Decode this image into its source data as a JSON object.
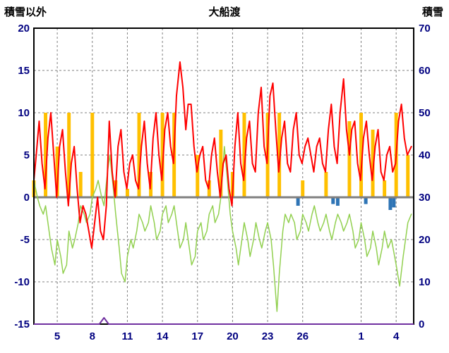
{
  "chart_data": {
    "type": "line",
    "title": "大船渡",
    "left_axis": {
      "label": "積雪以外",
      "min": -15,
      "max": 20,
      "ticks": [
        20,
        15,
        10,
        5,
        0,
        -5,
        -10,
        -15
      ]
    },
    "right_axis": {
      "label": "積雪",
      "min": 0,
      "max": 70,
      "ticks": [
        70,
        60,
        50,
        40,
        30,
        20,
        10,
        0
      ]
    },
    "x_axis": {
      "min": 3,
      "max": 35.5,
      "tick_days": [
        5,
        8,
        11,
        14,
        17,
        20,
        23,
        26,
        31,
        34
      ],
      "tick_labels": [
        "5",
        "8",
        "11",
        "14",
        "17",
        "20",
        "23",
        "26",
        "1",
        "4"
      ]
    },
    "colors": {
      "grid": "#808080",
      "zero_line": "#808080",
      "frame": "#000000",
      "tick_text": "#000080",
      "red_line": "#FF0000",
      "green_line": "#92D050",
      "orange_bars": "#FFC000",
      "blue_bars": "#2E74B5",
      "purple_line": "#7030A0"
    },
    "series": [
      {
        "name": "orange-bars",
        "type": "bar",
        "axis": "left",
        "color": "#FFC000",
        "bar_width_days": 0.3,
        "points": [
          [
            3,
            2
          ],
          [
            4,
            10
          ],
          [
            5,
            6
          ],
          [
            6,
            10
          ],
          [
            7,
            3
          ],
          [
            8,
            10
          ],
          [
            10,
            2
          ],
          [
            11,
            1
          ],
          [
            12,
            10
          ],
          [
            13,
            3
          ],
          [
            14,
            10
          ],
          [
            15,
            10
          ],
          [
            17,
            5
          ],
          [
            18,
            2
          ],
          [
            19,
            8
          ],
          [
            20,
            3
          ],
          [
            21,
            10
          ],
          [
            23,
            10
          ],
          [
            24,
            10
          ],
          [
            26,
            2
          ],
          [
            28,
            3
          ],
          [
            30,
            9
          ],
          [
            31,
            10
          ],
          [
            32,
            8
          ],
          [
            33,
            2
          ],
          [
            34,
            10
          ],
          [
            35,
            5
          ]
        ]
      },
      {
        "name": "blue-bars",
        "type": "bar",
        "axis": "left",
        "color": "#2E74B5",
        "bar_width_days": 0.3,
        "points": [
          [
            25.6,
            -1
          ],
          [
            28.6,
            -0.8
          ],
          [
            29,
            -1
          ],
          [
            31.4,
            -0.8
          ],
          [
            33.5,
            -1.5
          ],
          [
            33.8,
            -1.2
          ]
        ]
      },
      {
        "name": "green-line",
        "type": "line",
        "axis": "left",
        "color": "#92D050",
        "width": 1.5,
        "points": [
          [
            3,
            2
          ],
          [
            3.3,
            0
          ],
          [
            3.5,
            -1
          ],
          [
            3.8,
            -2
          ],
          [
            4,
            -1
          ],
          [
            4.3,
            -4
          ],
          [
            4.5,
            -6
          ],
          [
            4.8,
            -8
          ],
          [
            5,
            -5
          ],
          [
            5.3,
            -7
          ],
          [
            5.5,
            -9
          ],
          [
            5.8,
            -8
          ],
          [
            6,
            -4
          ],
          [
            6.3,
            -6
          ],
          [
            6.5,
            -5
          ],
          [
            6.8,
            -3
          ],
          [
            7,
            -1
          ],
          [
            7.3,
            -2
          ],
          [
            7.5,
            -3
          ],
          [
            7.8,
            -2
          ],
          [
            8,
            0
          ],
          [
            8.3,
            1
          ],
          [
            8.5,
            2
          ],
          [
            8.8,
            0
          ],
          [
            9,
            -1
          ],
          [
            9.3,
            3
          ],
          [
            9.5,
            5
          ],
          [
            9.8,
            1
          ],
          [
            10,
            -2
          ],
          [
            10.3,
            -6
          ],
          [
            10.5,
            -9
          ],
          [
            10.8,
            -10
          ],
          [
            11,
            -7
          ],
          [
            11.3,
            -5
          ],
          [
            11.5,
            -6
          ],
          [
            11.8,
            -4
          ],
          [
            12,
            -2
          ],
          [
            12.3,
            -3
          ],
          [
            12.5,
            -4
          ],
          [
            12.8,
            -3
          ],
          [
            13,
            -1
          ],
          [
            13.3,
            -3
          ],
          [
            13.5,
            -5
          ],
          [
            13.8,
            -4
          ],
          [
            14,
            -2
          ],
          [
            14.3,
            -1
          ],
          [
            14.5,
            -3
          ],
          [
            14.8,
            -2
          ],
          [
            15,
            -1
          ],
          [
            15.3,
            -4
          ],
          [
            15.5,
            -6
          ],
          [
            15.8,
            -5
          ],
          [
            16,
            -3
          ],
          [
            16.3,
            -6
          ],
          [
            16.5,
            -8
          ],
          [
            16.8,
            -7
          ],
          [
            17,
            -4
          ],
          [
            17.3,
            -3
          ],
          [
            17.5,
            -5
          ],
          [
            17.8,
            -4
          ],
          [
            18,
            -2
          ],
          [
            18.3,
            -1
          ],
          [
            18.5,
            -3
          ],
          [
            18.8,
            -2
          ],
          [
            19,
            0
          ],
          [
            19.3,
            6
          ],
          [
            19.5,
            3
          ],
          [
            19.8,
            -2
          ],
          [
            20,
            -4
          ],
          [
            20.3,
            -6
          ],
          [
            20.5,
            -8
          ],
          [
            20.8,
            -5
          ],
          [
            21,
            -3
          ],
          [
            21.3,
            -5
          ],
          [
            21.5,
            -7
          ],
          [
            21.8,
            -5
          ],
          [
            22,
            -3
          ],
          [
            22.3,
            -5
          ],
          [
            22.5,
            -6
          ],
          [
            22.8,
            -4
          ],
          [
            23,
            -3
          ],
          [
            23.3,
            -5
          ],
          [
            23.5,
            -8
          ],
          [
            23.8,
            -13.5
          ],
          [
            24,
            -9
          ],
          [
            24.3,
            -4
          ],
          [
            24.5,
            -2
          ],
          [
            24.8,
            -3
          ],
          [
            25,
            -2
          ],
          [
            25.3,
            -3
          ],
          [
            25.5,
            -5
          ],
          [
            25.8,
            -4
          ],
          [
            26,
            -2
          ],
          [
            26.3,
            -3
          ],
          [
            26.5,
            -4
          ],
          [
            26.8,
            -2
          ],
          [
            27,
            -1
          ],
          [
            27.3,
            -3
          ],
          [
            27.5,
            -4
          ],
          [
            27.8,
            -3
          ],
          [
            28,
            -2
          ],
          [
            28.3,
            -4
          ],
          [
            28.5,
            -5
          ],
          [
            28.8,
            -3
          ],
          [
            29,
            -2
          ],
          [
            29.3,
            -3
          ],
          [
            29.5,
            -4
          ],
          [
            29.8,
            -3
          ],
          [
            30,
            -2
          ],
          [
            30.3,
            -4
          ],
          [
            30.5,
            -6
          ],
          [
            30.8,
            -5
          ],
          [
            31,
            -3
          ],
          [
            31.3,
            -5
          ],
          [
            31.5,
            -7
          ],
          [
            31.8,
            -6
          ],
          [
            32,
            -4
          ],
          [
            32.3,
            -6
          ],
          [
            32.5,
            -8
          ],
          [
            32.8,
            -6
          ],
          [
            33,
            -4
          ],
          [
            33.3,
            -6
          ],
          [
            33.6,
            -5
          ],
          [
            34,
            -8
          ],
          [
            34.3,
            -10.5
          ],
          [
            34.6,
            -7
          ],
          [
            35,
            -3
          ],
          [
            35.3,
            -2
          ]
        ]
      },
      {
        "name": "red-line",
        "type": "line",
        "axis": "left",
        "color": "#FF0000",
        "width": 2,
        "points": [
          [
            3,
            2
          ],
          [
            3.2,
            5
          ],
          [
            3.45,
            9
          ],
          [
            3.7,
            4
          ],
          [
            3.95,
            1
          ],
          [
            4.2,
            7
          ],
          [
            4.45,
            10
          ],
          [
            4.7,
            5
          ],
          [
            4.95,
            0
          ],
          [
            5.2,
            6
          ],
          [
            5.45,
            8
          ],
          [
            5.7,
            3
          ],
          [
            5.95,
            -1
          ],
          [
            6.2,
            4
          ],
          [
            6.45,
            6
          ],
          [
            6.7,
            1
          ],
          [
            6.95,
            -3
          ],
          [
            7.2,
            -1
          ],
          [
            7.45,
            -2
          ],
          [
            7.7,
            -4
          ],
          [
            7.95,
            -6
          ],
          [
            8.2,
            -3
          ],
          [
            8.45,
            0
          ],
          [
            8.7,
            -4
          ],
          [
            8.95,
            -5
          ],
          [
            9.2,
            -1
          ],
          [
            9.45,
            9
          ],
          [
            9.7,
            3
          ],
          [
            9.95,
            0
          ],
          [
            10.2,
            6
          ],
          [
            10.45,
            8
          ],
          [
            10.7,
            3
          ],
          [
            10.95,
            1
          ],
          [
            11.2,
            4
          ],
          [
            11.45,
            5
          ],
          [
            11.7,
            2
          ],
          [
            11.95,
            1
          ],
          [
            12.2,
            6
          ],
          [
            12.45,
            9
          ],
          [
            12.7,
            4
          ],
          [
            12.95,
            1
          ],
          [
            13.2,
            7
          ],
          [
            13.45,
            10
          ],
          [
            13.7,
            5
          ],
          [
            13.95,
            2
          ],
          [
            14.2,
            8
          ],
          [
            14.45,
            10
          ],
          [
            14.7,
            6
          ],
          [
            14.95,
            4
          ],
          [
            15.2,
            12
          ],
          [
            15.5,
            16
          ],
          [
            15.75,
            13
          ],
          [
            16,
            8
          ],
          [
            16.2,
            11
          ],
          [
            16.45,
            11
          ],
          [
            16.7,
            6
          ],
          [
            16.95,
            3
          ],
          [
            17.2,
            5
          ],
          [
            17.45,
            6
          ],
          [
            17.7,
            2
          ],
          [
            17.95,
            1
          ],
          [
            18.2,
            5
          ],
          [
            18.45,
            7
          ],
          [
            18.7,
            3
          ],
          [
            18.95,
            0
          ],
          [
            19.2,
            4
          ],
          [
            19.45,
            5
          ],
          [
            19.7,
            1
          ],
          [
            19.95,
            -1
          ],
          [
            20.2,
            6
          ],
          [
            20.45,
            10
          ],
          [
            20.7,
            4
          ],
          [
            20.95,
            2
          ],
          [
            21.2,
            7
          ],
          [
            21.45,
            9
          ],
          [
            21.7,
            4
          ],
          [
            21.95,
            3
          ],
          [
            22.2,
            10
          ],
          [
            22.45,
            13
          ],
          [
            22.7,
            6
          ],
          [
            22.95,
            4
          ],
          [
            23.2,
            12
          ],
          [
            23.45,
            13.5
          ],
          [
            23.7,
            8
          ],
          [
            23.95,
            3
          ],
          [
            24.2,
            7
          ],
          [
            24.45,
            9
          ],
          [
            24.7,
            4
          ],
          [
            24.95,
            3
          ],
          [
            25.2,
            8
          ],
          [
            25.45,
            10
          ],
          [
            25.7,
            5
          ],
          [
            25.95,
            4
          ],
          [
            26.2,
            6
          ],
          [
            26.45,
            7
          ],
          [
            26.7,
            5
          ],
          [
            26.95,
            3
          ],
          [
            27.2,
            6
          ],
          [
            27.45,
            7
          ],
          [
            27.7,
            4
          ],
          [
            27.95,
            3
          ],
          [
            28.2,
            8
          ],
          [
            28.45,
            11
          ],
          [
            28.7,
            6
          ],
          [
            28.95,
            4
          ],
          [
            29.2,
            10
          ],
          [
            29.5,
            14
          ],
          [
            29.75,
            8
          ],
          [
            30,
            5
          ],
          [
            30.2,
            8
          ],
          [
            30.45,
            9
          ],
          [
            30.7,
            4
          ],
          [
            30.95,
            2
          ],
          [
            31.2,
            7
          ],
          [
            31.45,
            9
          ],
          [
            31.7,
            5
          ],
          [
            31.95,
            2
          ],
          [
            32.2,
            6
          ],
          [
            32.45,
            8
          ],
          [
            32.7,
            3
          ],
          [
            32.95,
            2
          ],
          [
            33.2,
            5
          ],
          [
            33.45,
            6
          ],
          [
            33.7,
            3
          ],
          [
            33.95,
            4
          ],
          [
            34.2,
            9
          ],
          [
            34.45,
            11
          ],
          [
            34.7,
            7
          ],
          [
            34.95,
            5
          ],
          [
            35.3,
            6
          ]
        ]
      },
      {
        "name": "purple-line",
        "type": "line",
        "axis": "right",
        "color": "#7030A0",
        "width": 2,
        "points": [
          [
            3,
            0
          ],
          [
            8.6,
            0
          ],
          [
            9,
            1.5
          ],
          [
            9.4,
            0
          ],
          [
            35.5,
            0
          ]
        ]
      }
    ]
  }
}
